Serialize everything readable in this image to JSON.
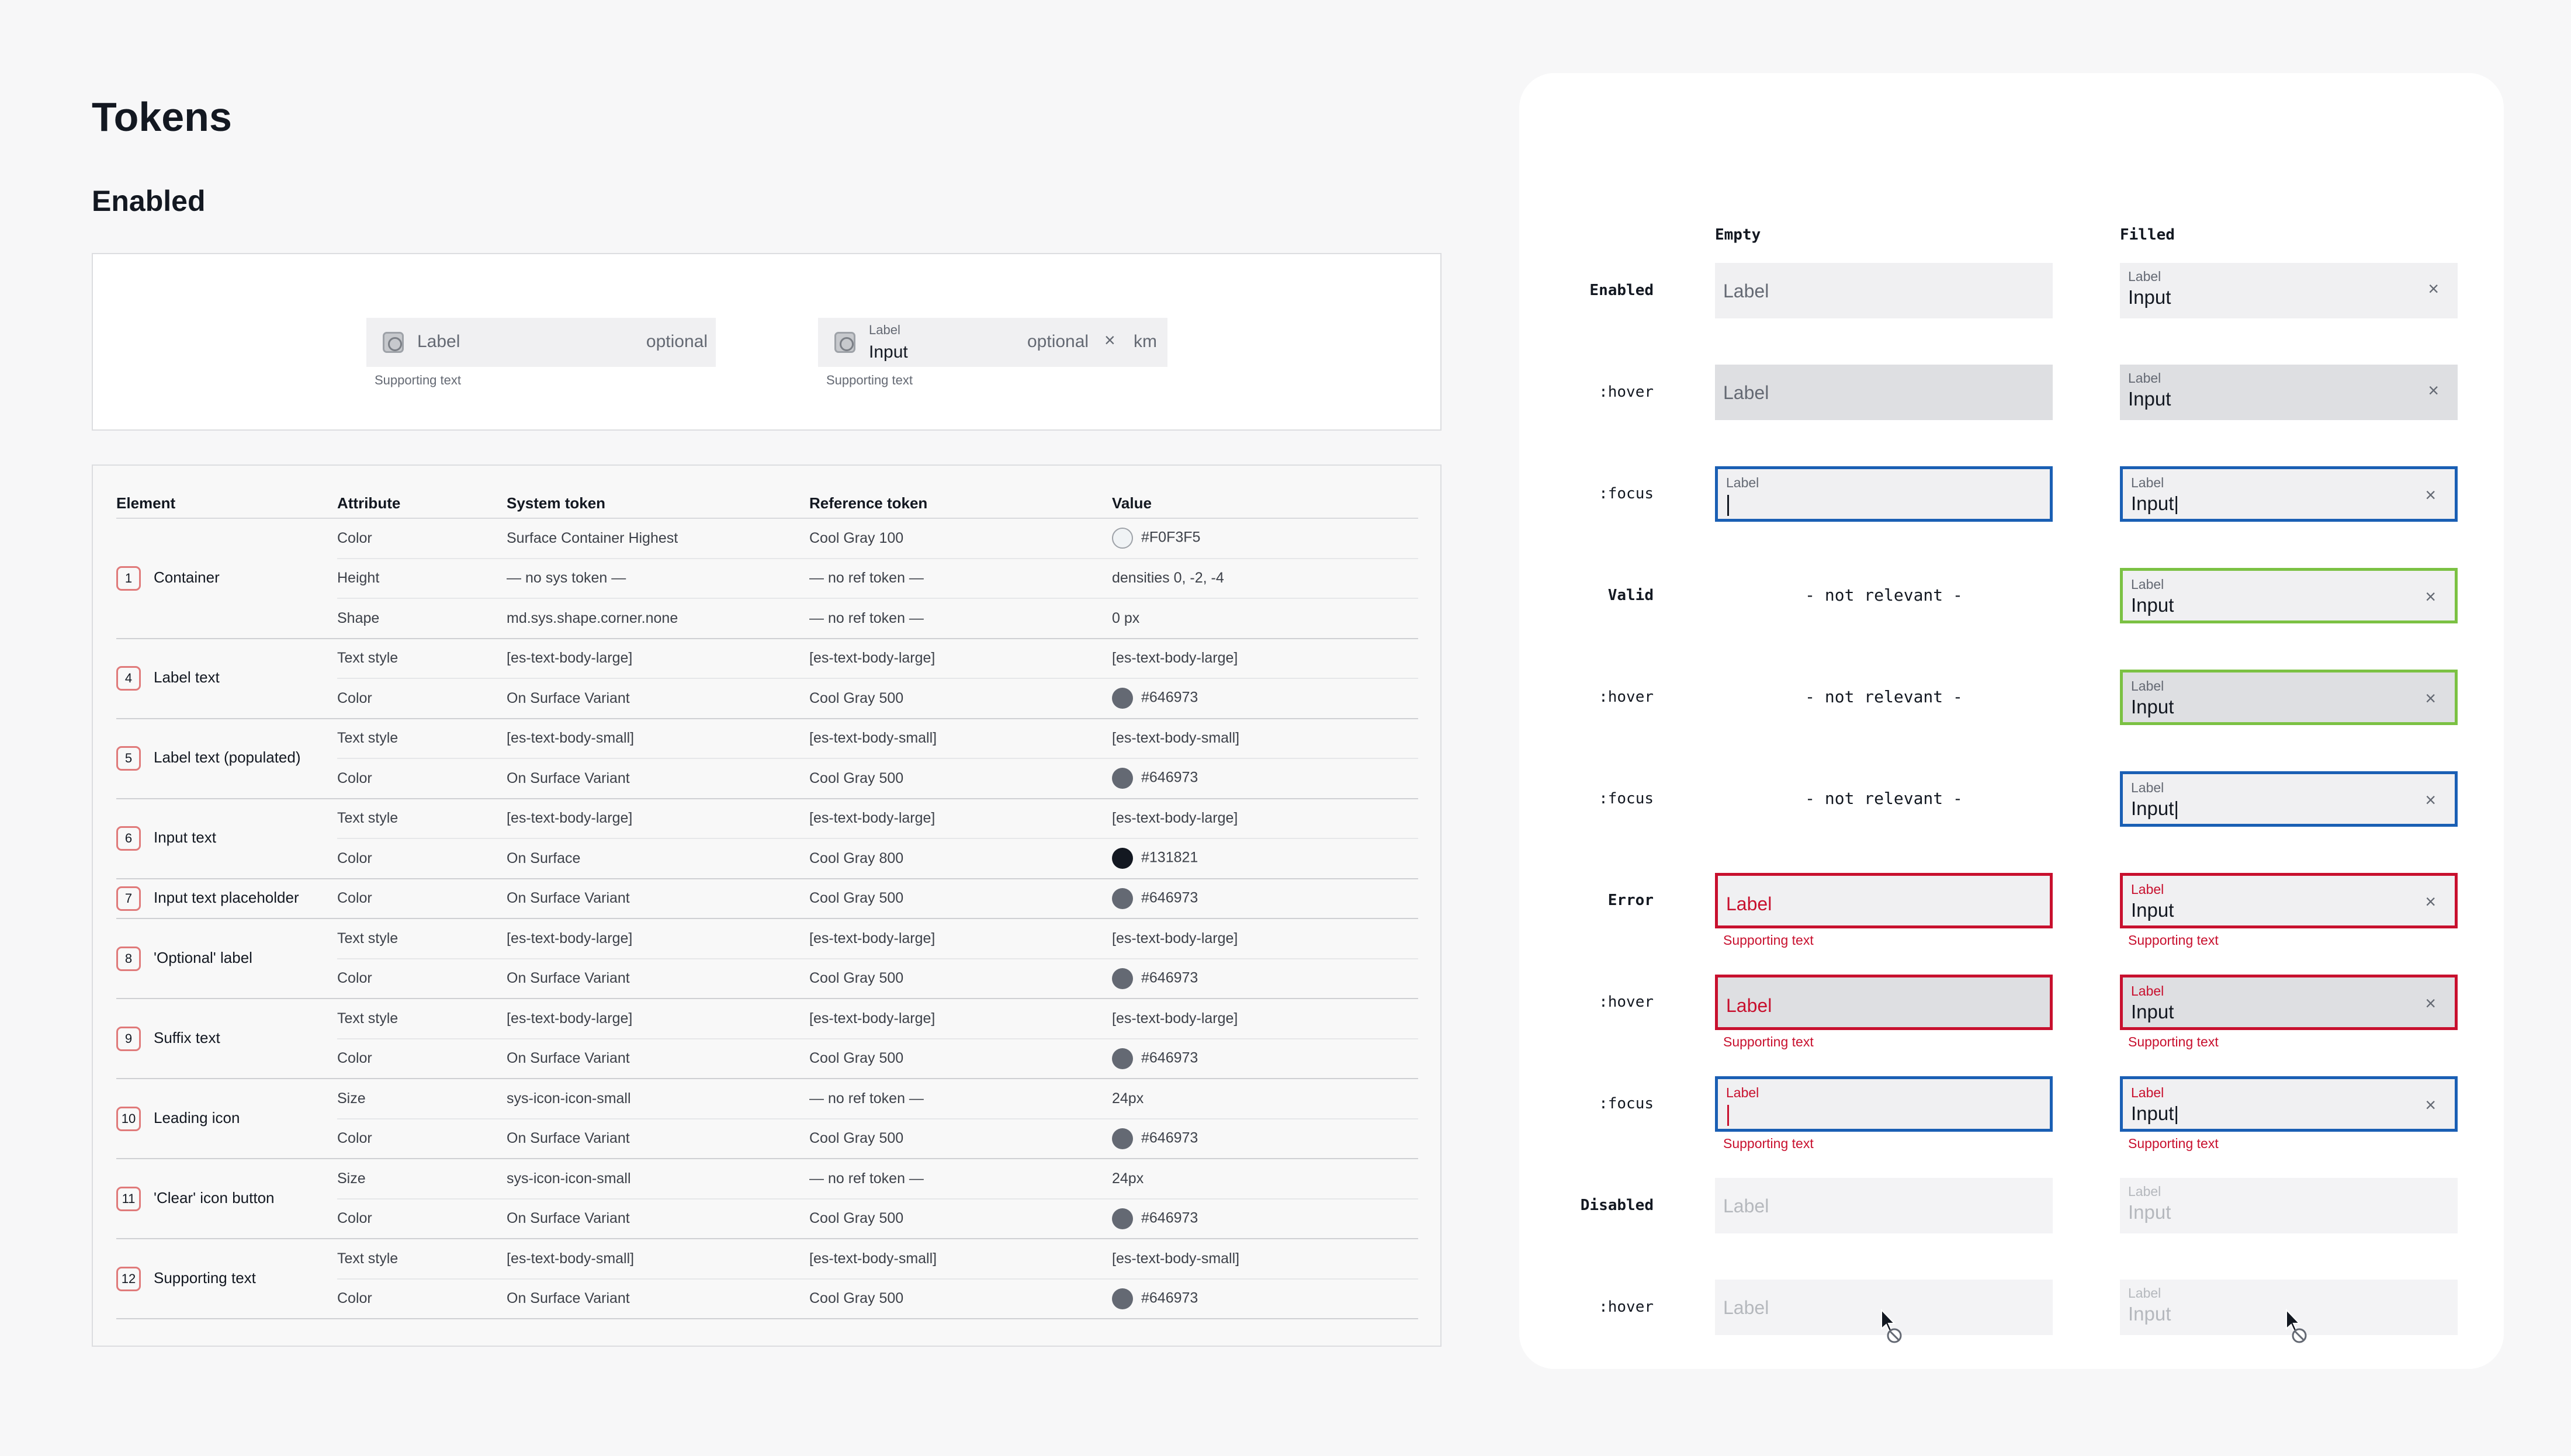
{
  "page_title": "Tokens",
  "section_title": "Enabled",
  "preview": {
    "empty_field": {
      "label": "Label",
      "optional": "optional",
      "supporting": "Supporting text"
    },
    "filled_field": {
      "label": "Label",
      "input": "Input",
      "optional": "optional",
      "clear": "×",
      "suffix": "km",
      "supporting": "Supporting text"
    }
  },
  "table": {
    "headers": [
      "Element",
      "Attribute",
      "System token",
      "Reference token",
      "Value"
    ],
    "groups": [
      {
        "num": "1",
        "element": "Container",
        "rows": [
          [
            "Color",
            "Surface Container Highest",
            "Cool Gray 100",
            "#F0F3F5",
            "light"
          ],
          [
            "Height",
            "— no sys token —",
            "— no ref token —",
            "densities 0, -2, -4",
            ""
          ],
          [
            "Shape",
            "md.sys.shape.corner.none",
            "— no ref token —",
            "0 px",
            ""
          ]
        ]
      },
      {
        "num": "4",
        "element": "Label text",
        "rows": [
          [
            "Text style",
            "[es-text-body-large]",
            "[es-text-body-large]",
            "[es-text-body-large]",
            ""
          ],
          [
            "Color",
            "On Surface Variant",
            "Cool Gray 500",
            "#646973",
            "mid"
          ]
        ]
      },
      {
        "num": "5",
        "element": "Label text (populated)",
        "rows": [
          [
            "Text style",
            "[es-text-body-small]",
            "[es-text-body-small]",
            "[es-text-body-small]",
            ""
          ],
          [
            "Color",
            "On Surface Variant",
            "Cool Gray 500",
            "#646973",
            "mid"
          ]
        ]
      },
      {
        "num": "6",
        "element": "Input text",
        "rows": [
          [
            "Text style",
            "[es-text-body-large]",
            "[es-text-body-large]",
            "[es-text-body-large]",
            ""
          ],
          [
            "Color",
            "On Surface",
            "Cool Gray 800",
            "#131821",
            "dark"
          ]
        ]
      },
      {
        "num": "7",
        "element": "Input text placeholder",
        "rows": [
          [
            "Color",
            "On Surface Variant",
            "Cool Gray 500",
            "#646973",
            "mid"
          ]
        ]
      },
      {
        "num": "8",
        "element": "'Optional' label",
        "rows": [
          [
            "Text style",
            "[es-text-body-large]",
            "[es-text-body-large]",
            "[es-text-body-large]",
            ""
          ],
          [
            "Color",
            "On Surface Variant",
            "Cool Gray 500",
            "#646973",
            "mid"
          ]
        ]
      },
      {
        "num": "9",
        "element": "Suffix text",
        "rows": [
          [
            "Text style",
            "[es-text-body-large]",
            "[es-text-body-large]",
            "[es-text-body-large]",
            ""
          ],
          [
            "Color",
            "On Surface Variant",
            "Cool Gray 500",
            "#646973",
            "mid"
          ]
        ]
      },
      {
        "num": "10",
        "element": "Leading icon",
        "rows": [
          [
            "Size",
            "sys-icon-icon-small",
            "— no ref token —",
            "24px",
            ""
          ],
          [
            "Color",
            "On Surface Variant",
            "Cool Gray 500",
            "#646973",
            "mid"
          ]
        ]
      },
      {
        "num": "11",
        "element": "'Clear' icon button",
        "rows": [
          [
            "Size",
            "sys-icon-icon-small",
            "— no ref token —",
            "24px",
            ""
          ],
          [
            "Color",
            "On Surface Variant",
            "Cool Gray 500",
            "#646973",
            "mid"
          ]
        ]
      },
      {
        "num": "12",
        "element": "Supporting text",
        "rows": [
          [
            "Text style",
            "[es-text-body-small]",
            "[es-text-body-small]",
            "[es-text-body-small]",
            ""
          ],
          [
            "Color",
            "On Surface Variant",
            "Cool Gray 500",
            "#646973",
            "mid"
          ]
        ]
      }
    ]
  },
  "states": {
    "col_empty": "Empty",
    "col_filled": "Filled",
    "field_label": "Label",
    "field_input": "Input",
    "field_input_caret": "Input|",
    "caret": "|",
    "clear": "×",
    "not_relevant": "- not relevant -",
    "supporting": "Supporting text",
    "row_labels": [
      "Enabled",
      ":hover",
      ":focus",
      "Valid",
      ":hover",
      ":focus",
      "Error",
      ":hover",
      ":focus",
      "Disabled",
      ":hover"
    ]
  },
  "colors": {
    "focus_border": "#1a5fb4",
    "valid_border": "#7bc143",
    "error": "#c8102e",
    "container": "#F0F3F5",
    "on_surface_variant": "#646973",
    "on_surface": "#131821"
  }
}
